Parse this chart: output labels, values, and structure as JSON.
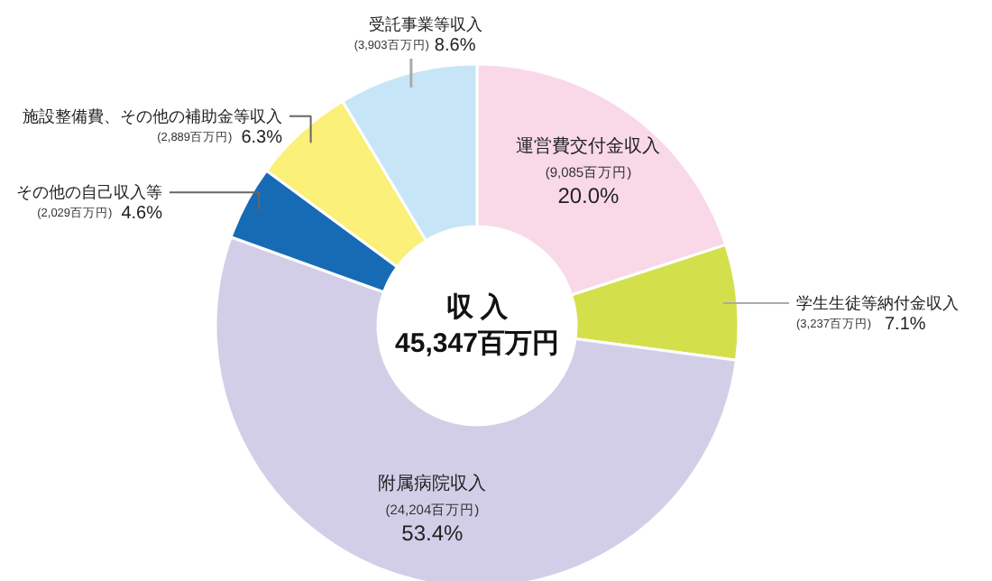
{
  "chart_data": {
    "type": "donut",
    "title": "収 入",
    "subtitle": "45,347百万円",
    "categories": [
      "運営費交付金収入",
      "学生生徒等納付金収入",
      "附属病院収入",
      "その他の自己収入等",
      "施設整備費、その他の補助金等収入",
      "受託事業等収入"
    ],
    "values": [
      20.0,
      7.1,
      53.4,
      4.6,
      6.3,
      8.6
    ],
    "colors": [
      "#f9d9e7",
      "#d4df4c",
      "#d3cee8",
      "#176bb5",
      "#fbf078",
      "#c6e6f8"
    ],
    "value_labels": [
      "(9,085百万円) 20.0%",
      "(3,237百万円) 7.1%",
      "(24,204百万円) 53.4%",
      "(2,029百万円) 4.6%",
      "(2,889百万円) 6.3%",
      "(3,903百万円) 8.6%"
    ]
  }
}
